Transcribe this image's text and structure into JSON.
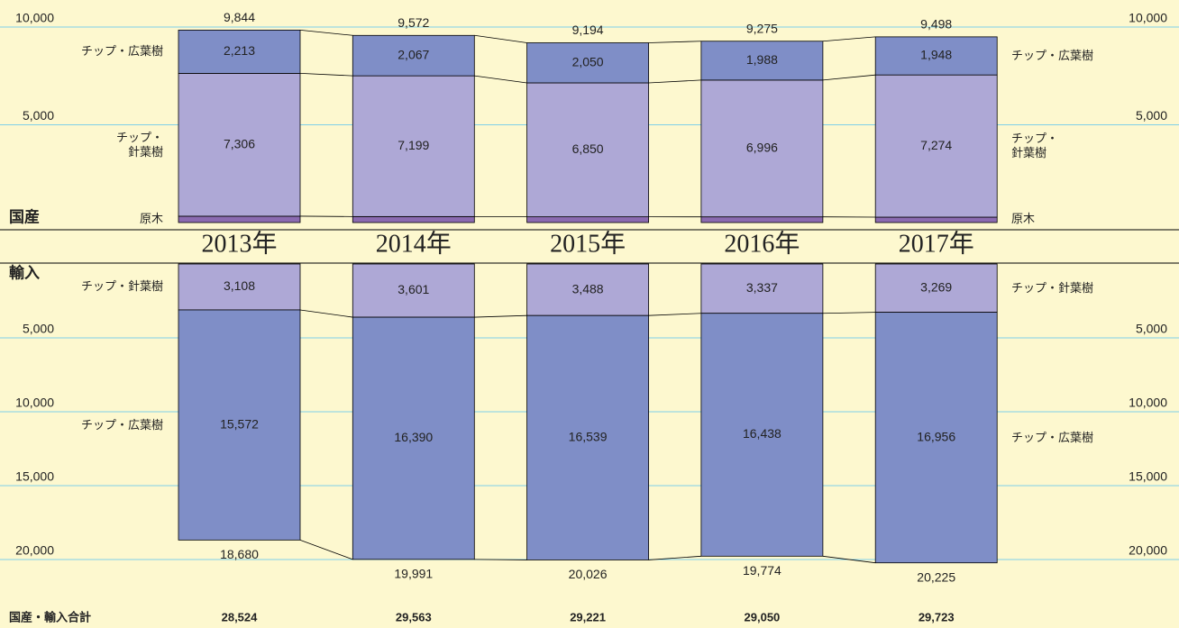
{
  "chart_data": {
    "type": "mirrored_stacked_bar",
    "categories": [
      "2013年",
      "2014年",
      "2015年",
      "2016年",
      "2017年"
    ],
    "upper": {
      "label": "国産",
      "ylim": [
        0,
        10000
      ],
      "yticks": [
        {
          "value": 5000,
          "label": "5,000"
        },
        {
          "value": 10000,
          "label": "10,000"
        }
      ],
      "series": [
        {
          "name": "原木",
          "color": "#8b6bb1",
          "values": [
            325,
            306,
            294,
            291,
            276
          ]
        },
        {
          "name": "チップ・針葉樹",
          "color": "#aea8d6",
          "values": [
            7306,
            7199,
            6850,
            6996,
            7274
          ],
          "value_labels": [
            "7,306",
            "7,199",
            "6,850",
            "6,996",
            "7,274"
          ]
        },
        {
          "name": "チップ・広葉樹",
          "color": "#7f8ec7",
          "values": [
            2213,
            2067,
            2050,
            1988,
            1948
          ],
          "value_labels": [
            "2,213",
            "2,067",
            "2,050",
            "1,988",
            "1,948"
          ]
        }
      ],
      "totals": [
        9844,
        9572,
        9194,
        9275,
        9498
      ],
      "total_labels": [
        "9,844",
        "9,572",
        "9,194",
        "9,275",
        "9,498"
      ]
    },
    "lower": {
      "label": "輸入",
      "ylim": [
        0,
        20000
      ],
      "yticks": [
        {
          "value": 5000,
          "label": "5,000"
        },
        {
          "value": 10000,
          "label": "10,000"
        },
        {
          "value": 15000,
          "label": "15,000"
        },
        {
          "value": 20000,
          "label": "20,000"
        }
      ],
      "series": [
        {
          "name": "チップ・針葉樹",
          "color": "#aea8d6",
          "values": [
            3108,
            3601,
            3488,
            3337,
            3269
          ],
          "value_labels": [
            "3,108",
            "3,601",
            "3,488",
            "3,337",
            "3,269"
          ]
        },
        {
          "name": "チップ・広葉樹",
          "color": "#7f8ec7",
          "values": [
            15572,
            16390,
            16539,
            16438,
            16956
          ],
          "value_labels": [
            "15,572",
            "16,390",
            "16,539",
            "16,438",
            "16,956"
          ]
        }
      ],
      "totals": [
        18680,
        19991,
        20026,
        19774,
        20225
      ],
      "total_labels": [
        "18,680",
        "19,991",
        "20,026",
        "19,774",
        "20,225"
      ]
    },
    "grand_total": {
      "label": "国産・輸入合計",
      "values": [
        28524,
        29563,
        29221,
        29050,
        29723
      ],
      "value_labels": [
        "28,524",
        "29,563",
        "29,221",
        "29,050",
        "29,723"
      ]
    }
  }
}
